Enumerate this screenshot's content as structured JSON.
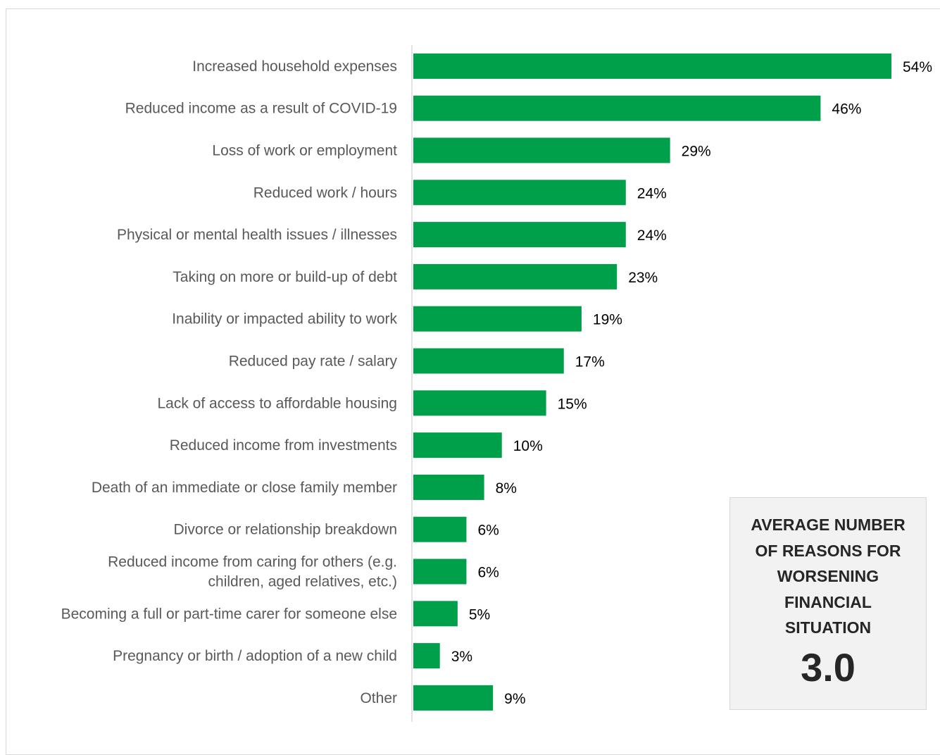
{
  "chart_data": {
    "type": "bar",
    "orientation": "horizontal",
    "categories": [
      [
        "Increased household expenses"
      ],
      [
        "Reduced income as a result of COVID-19"
      ],
      [
        "Loss of work or employment"
      ],
      [
        "Reduced work / hours"
      ],
      [
        "Physical or mental health issues / illnesses"
      ],
      [
        "Taking on more or build-up of debt"
      ],
      [
        "Inability or impacted ability to work"
      ],
      [
        "Reduced pay rate / salary"
      ],
      [
        "Lack of access to affordable housing"
      ],
      [
        "Reduced income from investments"
      ],
      [
        "Death of an immediate or close family member"
      ],
      [
        "Divorce or relationship breakdown"
      ],
      [
        "Reduced income from caring for others (e.g.",
        "children, aged relatives, etc.)"
      ],
      [
        "Becoming a full or part-time carer for someone else"
      ],
      [
        "Pregnancy or birth / adoption of a new child"
      ],
      [
        "Other"
      ]
    ],
    "values": [
      54,
      46,
      29,
      24,
      24,
      23,
      19,
      17,
      15,
      10,
      8,
      6,
      6,
      5,
      3,
      9
    ],
    "value_labels": [
      "54%",
      "46%",
      "29%",
      "24%",
      "24%",
      "23%",
      "19%",
      "17%",
      "15%",
      "10%",
      "8%",
      "6%",
      "6%",
      "5%",
      "3%",
      "9%"
    ],
    "unit": "%",
    "xlim": [
      0,
      54
    ],
    "bar_color": "#00a04b",
    "axis_color": "#d9d9d9",
    "grid": false,
    "legend": "none"
  },
  "callout": {
    "title": "AVERAGE NUMBER OF REASONS FOR WORSENING FINANCIAL SITUATION",
    "value": "3.0"
  }
}
